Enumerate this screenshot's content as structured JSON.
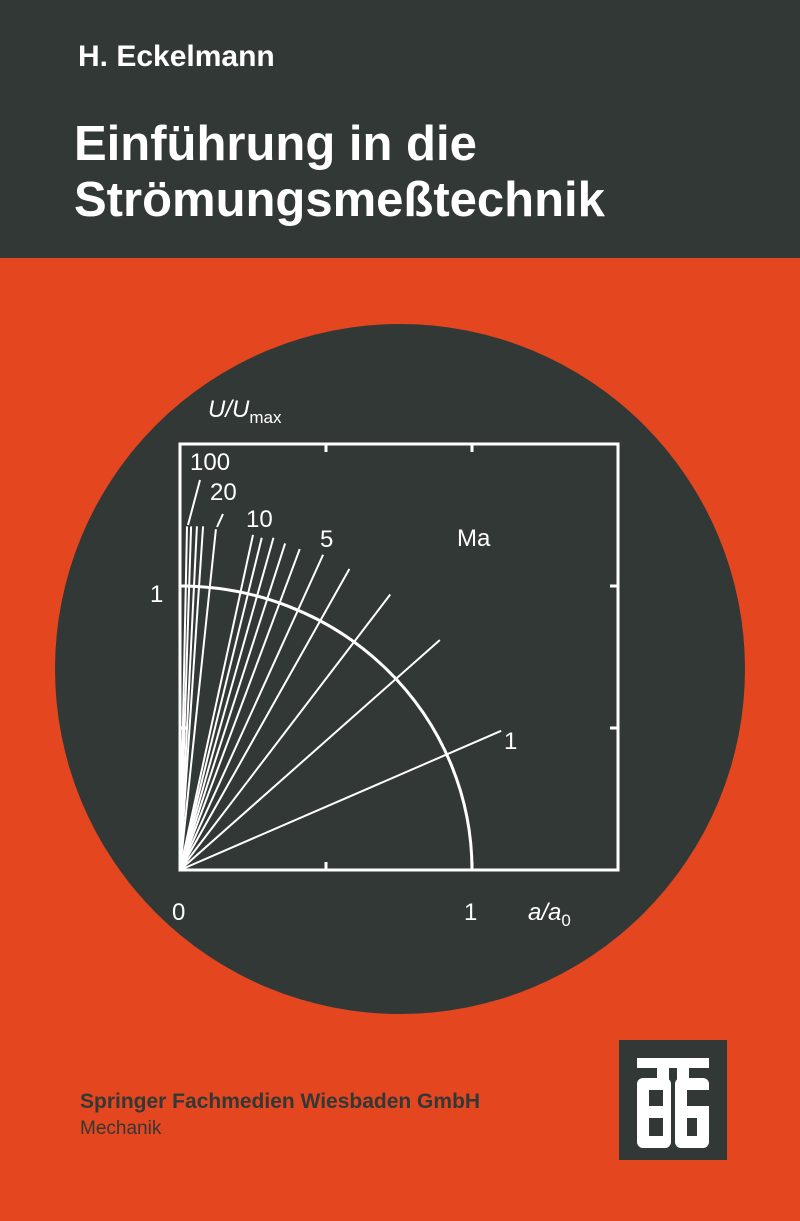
{
  "cover": {
    "author": "H. Eckelmann",
    "title_line1": "Einführung in die",
    "title_line2": "Strömungsmeßtechnik",
    "publisher": "Springer Fachmedien Wiesbaden GmbH",
    "series": "Mechanik",
    "logo_text": "TBG"
  },
  "colors": {
    "background": "#e4461f",
    "dark": "#323836",
    "ink": "#ffffff"
  },
  "chart_data": {
    "type": "line",
    "ylabel_main": "U/U",
    "ylabel_sub": "max",
    "xlabel_main": "a/a",
    "xlabel_sub": "0",
    "xlim": [
      0,
      1.5
    ],
    "ylim": [
      0,
      1.5
    ],
    "x_tick_labels": [
      {
        "value": 0,
        "label": "0"
      },
      {
        "value": 1,
        "label": "1"
      }
    ],
    "y_tick_labels": [
      {
        "value": 1,
        "label": "1"
      }
    ],
    "tick_marks": [
      0.5,
      1.0
    ],
    "curve": "quarter circle of radius 1",
    "series_label": "Ma",
    "line_labels": [
      "100",
      "20",
      "10",
      "5",
      "1"
    ],
    "lines_endpoints": [
      [
        0.024,
        1.21
      ],
      [
        0.038,
        1.21
      ],
      [
        0.058,
        1.21
      ],
      [
        0.079,
        1.21
      ],
      [
        0.123,
        1.2
      ],
      [
        0.25,
        1.18
      ],
      [
        0.28,
        1.17
      ],
      [
        0.32,
        1.17
      ],
      [
        0.36,
        1.15
      ],
      [
        0.41,
        1.13
      ],
      [
        0.49,
        1.11
      ],
      [
        0.58,
        1.06
      ],
      [
        0.72,
        0.97
      ],
      [
        0.89,
        0.81
      ],
      [
        1.1,
        0.49
      ]
    ]
  }
}
